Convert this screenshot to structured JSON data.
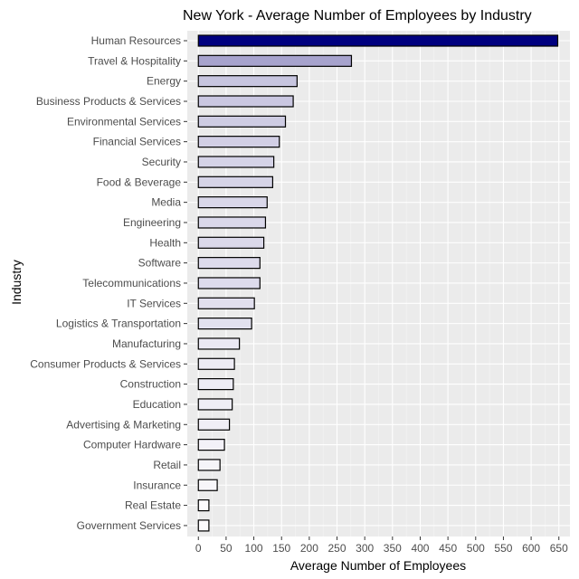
{
  "chart_data": {
    "type": "bar",
    "orientation": "horizontal",
    "title": "New York - Average Number of Employees by Industry",
    "xlabel": "Average Number of Employees",
    "ylabel": "Industry",
    "xlim": [
      -20,
      670
    ],
    "xticks": [
      0,
      50,
      100,
      150,
      200,
      250,
      300,
      350,
      400,
      450,
      500,
      550,
      600,
      650
    ],
    "grid": true,
    "legend": "none",
    "fill_gradient": {
      "low": "#fcfbfd",
      "high": "#00007f",
      "mid": "#9e9ac8"
    },
    "categories": [
      "Human Resources",
      "Travel & Hospitality",
      "Energy",
      "Business Products & Services",
      "Environmental Services",
      "Financial Services",
      "Security",
      "Food & Beverage",
      "Media",
      "Engineering",
      "Health",
      "Software",
      "Telecommunications",
      "IT Services",
      "Logistics & Transportation",
      "Manufacturing",
      "Consumer Products & Services",
      "Construction",
      "Education",
      "Advertising & Marketing",
      "Computer Hardware",
      "Retail",
      "Insurance",
      "Real Estate",
      "Government Services"
    ],
    "values": [
      648,
      276,
      178,
      171,
      157,
      146,
      136,
      134,
      124,
      121,
      118,
      111,
      111,
      101,
      96,
      74,
      65,
      63,
      61,
      56,
      47,
      39,
      34,
      19,
      19
    ]
  }
}
